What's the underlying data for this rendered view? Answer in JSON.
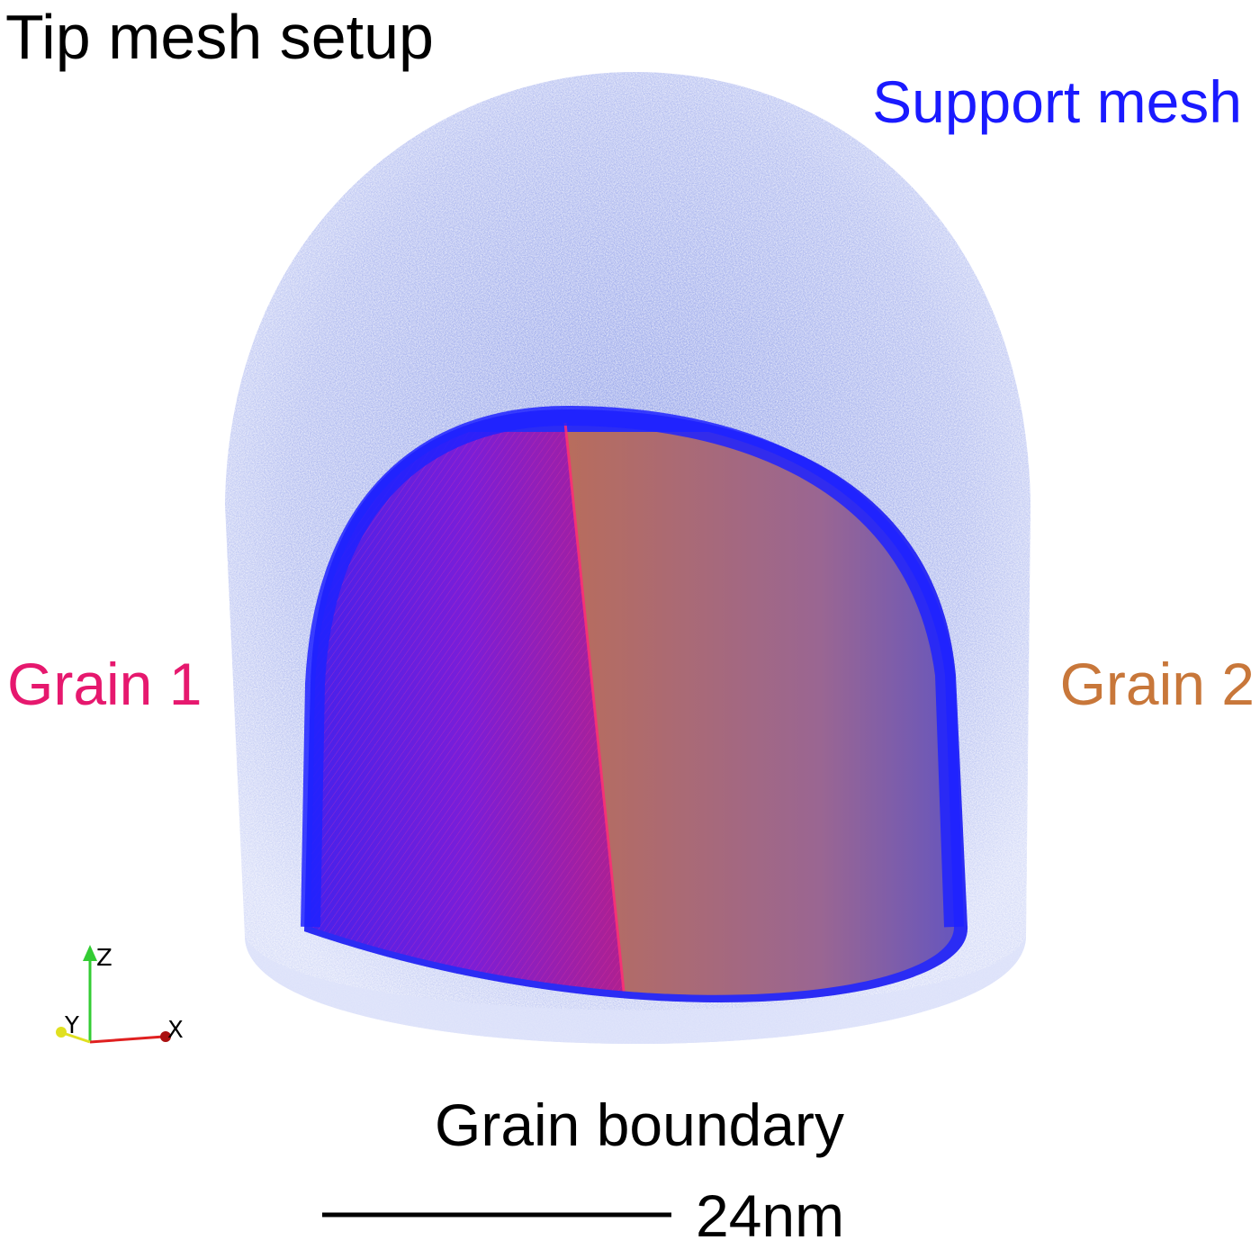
{
  "title": "Tip mesh setup",
  "labels": {
    "support_mesh": "Support mesh",
    "grain_1": "Grain 1",
    "grain_2": "Grain 2",
    "grain_boundary": "Grain boundary"
  },
  "scale_bar": {
    "label": "24nm"
  },
  "axes": {
    "z": "Z",
    "y": "Y",
    "x": "X"
  },
  "colors": {
    "title": "#000000",
    "support_mesh": "#1a1aff",
    "grain_1": "#e6186e",
    "grain_2": "#c8773a",
    "grain_boundary": "#000000",
    "support_mesh_fill": "#aab6ef",
    "inner_shell": "#2a2af5",
    "grain_1_fill": "#8a1fc8",
    "grain_2_fill": "#a06a86",
    "axis_z": "#33cc33",
    "axis_y": "#e0e020",
    "axis_x": "#e02020"
  }
}
